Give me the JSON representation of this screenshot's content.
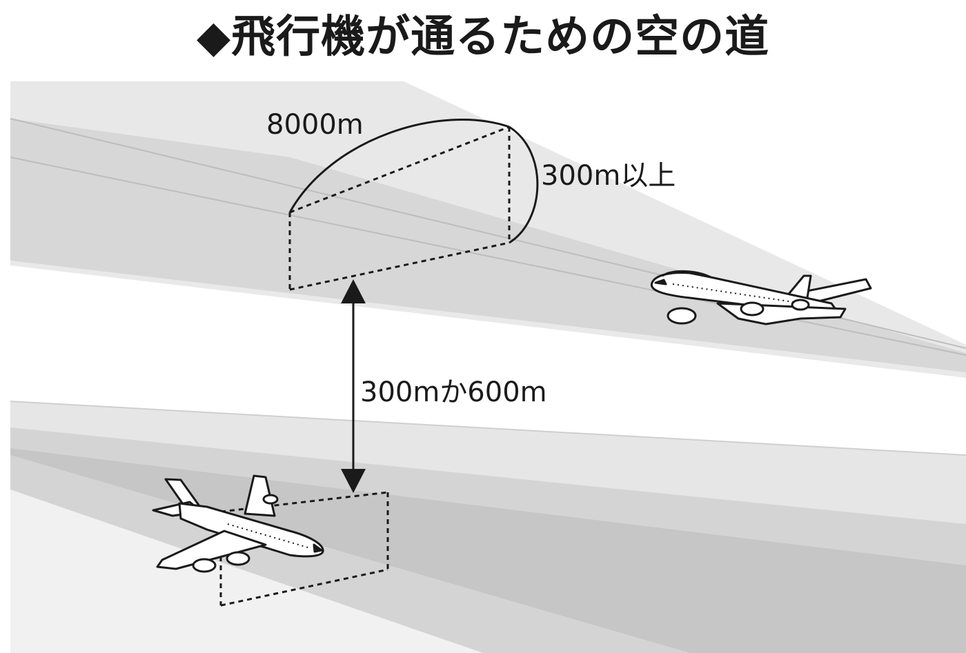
{
  "title": "◆飛行機が通るための空の道",
  "labels": {
    "width": "8000m",
    "height": "300m以上",
    "separation": "300mか600m"
  },
  "colors": {
    "airway_light": "#e6e6e6",
    "airway_mid": "#d4d4d4",
    "airway_dark": "#c8c8c8",
    "line": "#1a1a1a",
    "background": "#ffffff"
  },
  "icons": [
    "upper-airplane-icon",
    "lower-airplane-icon",
    "double-arrow-icon"
  ]
}
